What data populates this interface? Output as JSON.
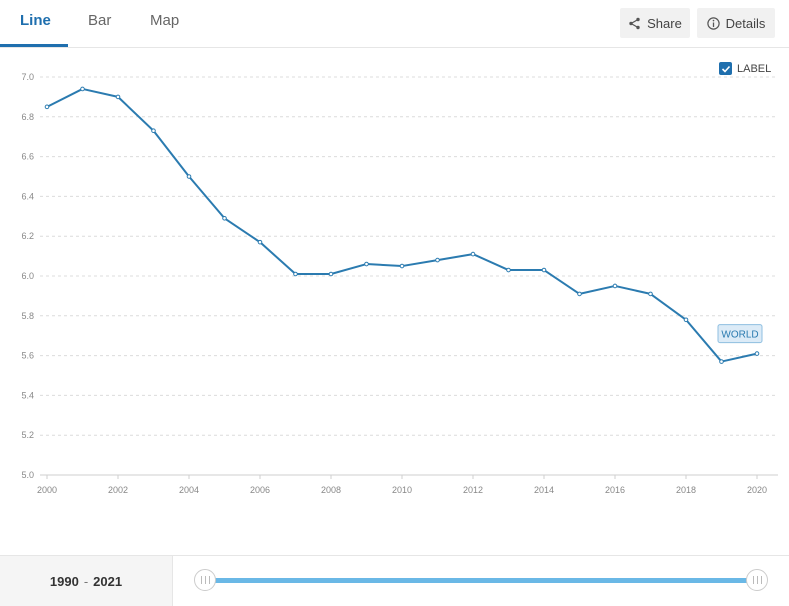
{
  "tabs": [
    {
      "label": "Line",
      "active": true
    },
    {
      "label": "Bar",
      "active": false
    },
    {
      "label": "Map",
      "active": false
    }
  ],
  "toolbar": {
    "share_label": "Share",
    "details_label": "Details"
  },
  "legend": {
    "label": "LABEL",
    "checked": true
  },
  "range": {
    "start": "1990",
    "end": "2021",
    "separator": "-"
  },
  "colors": {
    "accent": "#1f6fae",
    "line": "#2b7bb0",
    "slider": "#6ab8e6"
  },
  "chart_data": {
    "type": "line",
    "x": [
      2000,
      2001,
      2002,
      2003,
      2004,
      2005,
      2006,
      2007,
      2008,
      2009,
      2010,
      2011,
      2012,
      2013,
      2014,
      2015,
      2016,
      2017,
      2018,
      2019,
      2020
    ],
    "series": [
      {
        "name": "WORLD",
        "values": [
          6.85,
          6.94,
          6.9,
          6.73,
          6.5,
          6.29,
          6.17,
          6.01,
          6.01,
          6.06,
          6.05,
          6.08,
          6.11,
          6.03,
          6.03,
          5.91,
          5.95,
          5.91,
          5.78,
          5.57,
          5.61
        ]
      }
    ],
    "ylim": [
      5.0,
      7.0
    ],
    "yticks": [
      "5.0",
      "5.2",
      "5.4",
      "5.6",
      "5.8",
      "6.0",
      "6.2",
      "6.4",
      "6.6",
      "6.8",
      "7.0"
    ],
    "xticks": [
      "2000",
      "2002",
      "2004",
      "2006",
      "2008",
      "2010",
      "2012",
      "2014",
      "2016",
      "2018",
      "2020"
    ],
    "grid": true
  }
}
